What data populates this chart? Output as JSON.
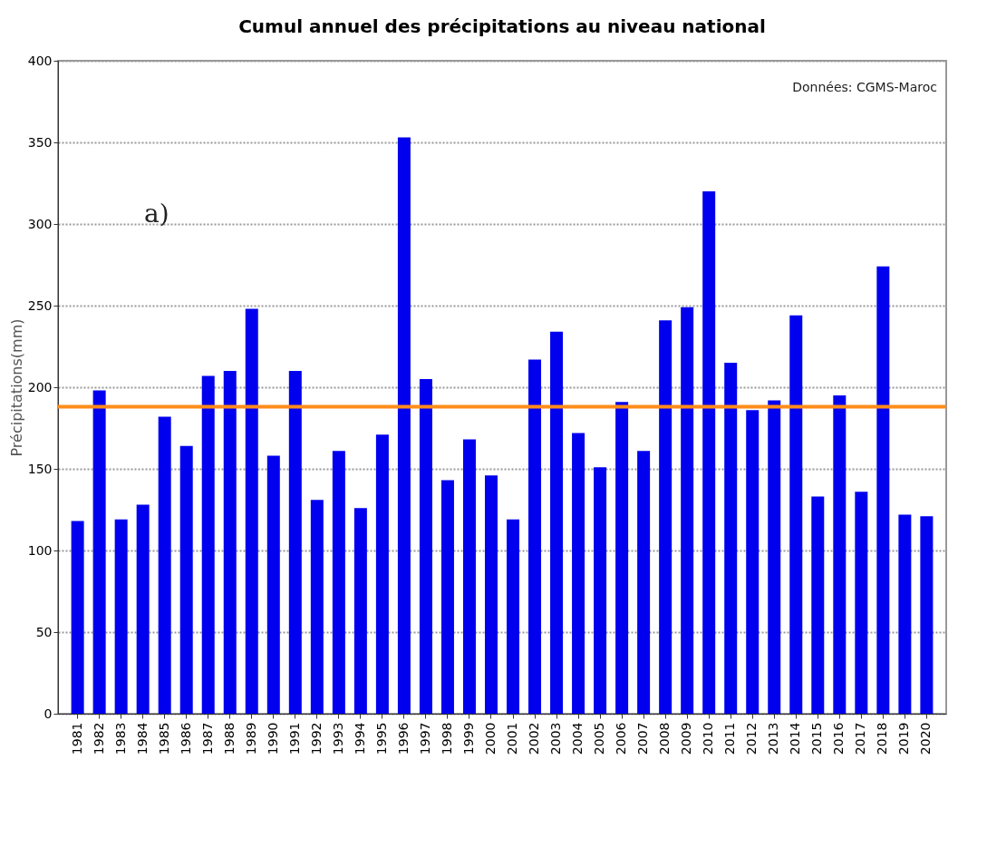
{
  "chart_data": {
    "type": "bar",
    "title": "Cumul annuel des précipitations au niveau national",
    "ylabel": "Précipitations(mm)",
    "categories": [
      "1981",
      "1982",
      "1983",
      "1984",
      "1985",
      "1986",
      "1987",
      "1988",
      "1989",
      "1990",
      "1991",
      "1992",
      "1993",
      "1994",
      "1995",
      "1996",
      "1997",
      "1998",
      "1999",
      "2000",
      "2001",
      "2002",
      "2003",
      "2004",
      "2005",
      "2006",
      "2007",
      "2008",
      "2009",
      "2010",
      "2011",
      "2012",
      "2013",
      "2014",
      "2015",
      "2016",
      "2017",
      "2018",
      "2019",
      "2020"
    ],
    "values": [
      118,
      198,
      119,
      128,
      182,
      164,
      207,
      210,
      248,
      158,
      210,
      131,
      161,
      126,
      171,
      353,
      205,
      143,
      168,
      146,
      119,
      217,
      234,
      172,
      151,
      191,
      161,
      241,
      249,
      320,
      215,
      186,
      192,
      244,
      133,
      195,
      136,
      274,
      122,
      121
    ],
    "color": "#0000ee",
    "ylim": [
      0,
      400
    ],
    "yticks": [
      0,
      50,
      100,
      150,
      200,
      250,
      300,
      350,
      400
    ],
    "grid": "y",
    "ref_lines": [
      {
        "axis": "y",
        "value": 188,
        "color": "#ff8c1a"
      }
    ],
    "annotations": [
      "Données: CGMS-Maroc",
      "a)"
    ]
  }
}
